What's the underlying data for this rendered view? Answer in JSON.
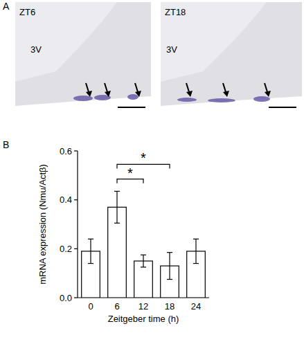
{
  "panel_labels": [
    "A",
    "B"
  ],
  "images": [
    {
      "label": "ZT6",
      "region": "3V"
    },
    {
      "label": "ZT18",
      "region": "3V"
    }
  ],
  "chart_data": {
    "type": "bar",
    "x_label": "Zeitgeber time (h)",
    "y_label": "mRNA expression (Nmu/Actβ)",
    "categories": [
      "0",
      "6",
      "12",
      "18",
      "24"
    ],
    "values": [
      0.19,
      0.37,
      0.15,
      0.13,
      0.19
    ],
    "errors": [
      0.05,
      0.065,
      0.025,
      0.055,
      0.05
    ],
    "color": "#ffffff",
    "ylim": [
      0,
      0.6
    ],
    "yticks": [
      {
        "value": 0,
        "label": "0.0"
      },
      0.2,
      0.4,
      0.6
    ],
    "grid": false,
    "annotations": [
      {
        "from": 1,
        "to": 2,
        "label": "*"
      },
      {
        "from": 1,
        "to": 3,
        "label": "*"
      }
    ]
  }
}
